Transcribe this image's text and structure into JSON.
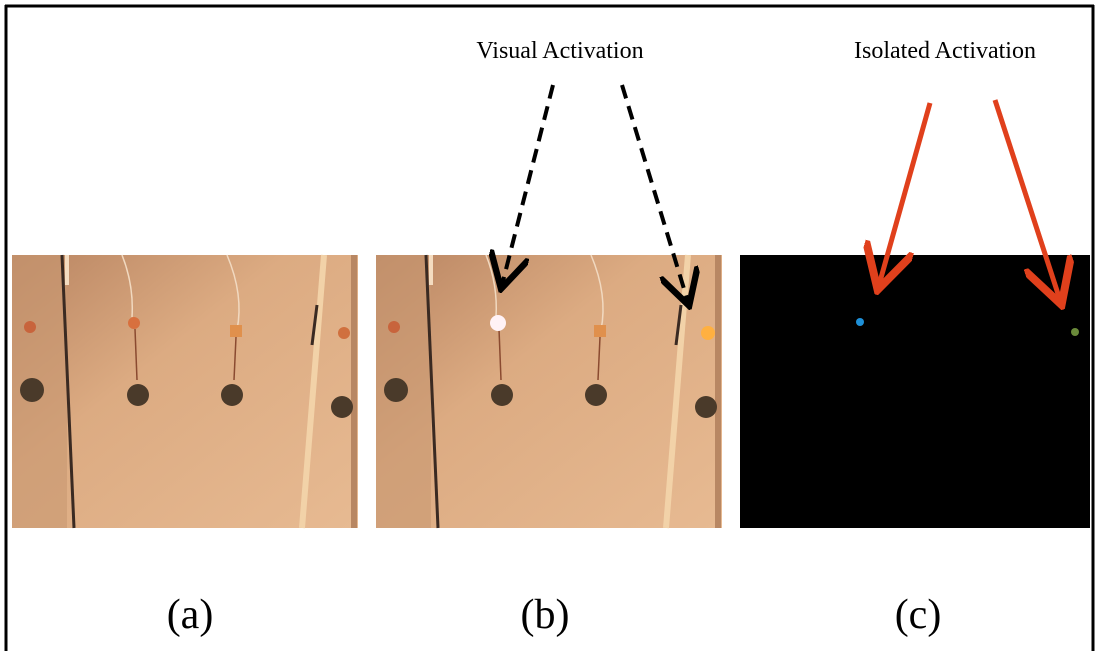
{
  "annotations": {
    "visual": "Visual Activation",
    "isolated": "Isolated Activation"
  },
  "panels": [
    {
      "label": "(a)"
    },
    {
      "label": "(b)"
    },
    {
      "label": "(c)"
    }
  ]
}
